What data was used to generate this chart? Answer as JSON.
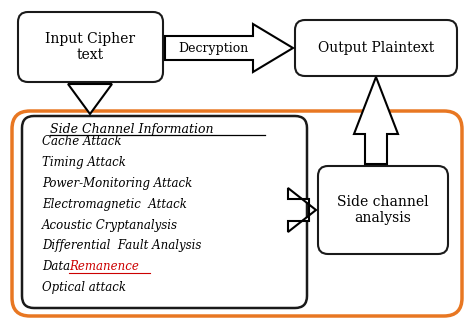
{
  "bg_color": "#ffffff",
  "orange_border_color": "#E87722",
  "box_border_color": "#1a1a1a",
  "input_cipher_text": "Input Cipher\ntext",
  "output_plaintext": "Output Plaintext",
  "decryption_label": "Decryption",
  "side_channel_info_title": "Side Channel Information",
  "side_channel_items": [
    "Cache Attack",
    "Timing Attack",
    "Power-Monitoring Attack",
    "Electromagnetic  Attack",
    "Acoustic Cryptanalysis",
    "Differential  Fault Analysis",
    "Data Remanence",
    "Optical attack"
  ],
  "side_channel_analysis_text": "Side channel\nanalysis"
}
